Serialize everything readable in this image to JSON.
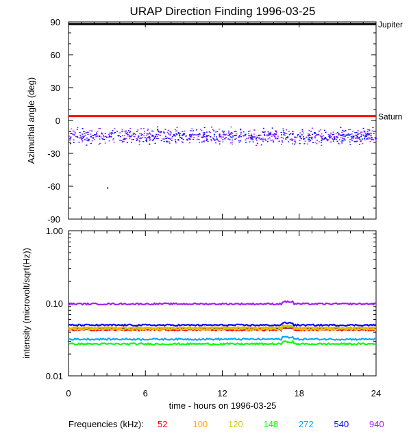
{
  "title": "URAP Direction Finding  1996-03-25",
  "chart_data": [
    {
      "type": "scatter",
      "panel": "azimuth",
      "ylabel": "Azimuthal angle (deg)",
      "xlim": [
        0,
        24
      ],
      "ylim": [
        -90,
        90
      ],
      "yticks": [
        {
          "v": 90,
          "label": "90"
        },
        {
          "v": 60,
          "label": "60"
        },
        {
          "v": 30,
          "label": "30"
        },
        {
          "v": 0,
          "label": "0"
        },
        {
          "v": -30,
          "label": "-30"
        },
        {
          "v": -60,
          "label": "-60"
        },
        {
          "v": -90,
          "label": "-90"
        }
      ],
      "reference_lines": [
        {
          "name": "Jupiter",
          "y": 88,
          "color": "#000000"
        },
        {
          "name": "Saturn",
          "y": 4,
          "color": "#ff0000"
        }
      ],
      "scatter_center": -14,
      "scatter_spread": 7,
      "scatter_outlier": {
        "x": 3.0,
        "y": -61
      },
      "series": [
        {
          "name": "540",
          "color": "#0000ff"
        },
        {
          "name": "940",
          "color": "#a020f0"
        }
      ]
    },
    {
      "type": "line",
      "panel": "intensity",
      "ylabel": "intensity (microvolt/sqrt(Hz))",
      "xlabel": "time - hours on 1996-03-25",
      "xlim": [
        0,
        24
      ],
      "ylim": [
        0.01,
        1.0
      ],
      "yscale": "log",
      "yticks": [
        {
          "v": 1.0,
          "label": "1.00"
        },
        {
          "v": 0.1,
          "label": "0.10"
        },
        {
          "v": 0.01,
          "label": "0.01"
        }
      ],
      "xticks": [
        {
          "v": 0,
          "label": "0"
        },
        {
          "v": 6,
          "label": "6"
        },
        {
          "v": 12,
          "label": "12"
        },
        {
          "v": 18,
          "label": "18"
        },
        {
          "v": 24,
          "label": "24"
        }
      ],
      "reference_line": 0.045,
      "series": [
        {
          "name": "52",
          "color": "#ff0000",
          "level": 0.043
        },
        {
          "name": "100",
          "color": "#ffa500",
          "level": 0.046
        },
        {
          "name": "120",
          "color": "#cccc00",
          "level": 0.044
        },
        {
          "name": "148",
          "color": "#00ff00",
          "level": 0.0275
        },
        {
          "name": "272",
          "color": "#00aaff",
          "level": 0.032
        },
        {
          "name": "540",
          "color": "#0000ff",
          "level": 0.05
        },
        {
          "name": "940",
          "color": "#a020f0",
          "level": 0.098
        }
      ]
    }
  ],
  "legend": {
    "label": "Frequencies (kHz):",
    "items": [
      {
        "name": "52",
        "color": "#ff0000"
      },
      {
        "name": "100",
        "color": "#ffa500"
      },
      {
        "name": "120",
        "color": "#cccc00"
      },
      {
        "name": "148",
        "color": "#00ff00"
      },
      {
        "name": "272",
        "color": "#00aaff"
      },
      {
        "name": "540",
        "color": "#0000ff"
      },
      {
        "name": "940",
        "color": "#a020f0"
      }
    ]
  }
}
